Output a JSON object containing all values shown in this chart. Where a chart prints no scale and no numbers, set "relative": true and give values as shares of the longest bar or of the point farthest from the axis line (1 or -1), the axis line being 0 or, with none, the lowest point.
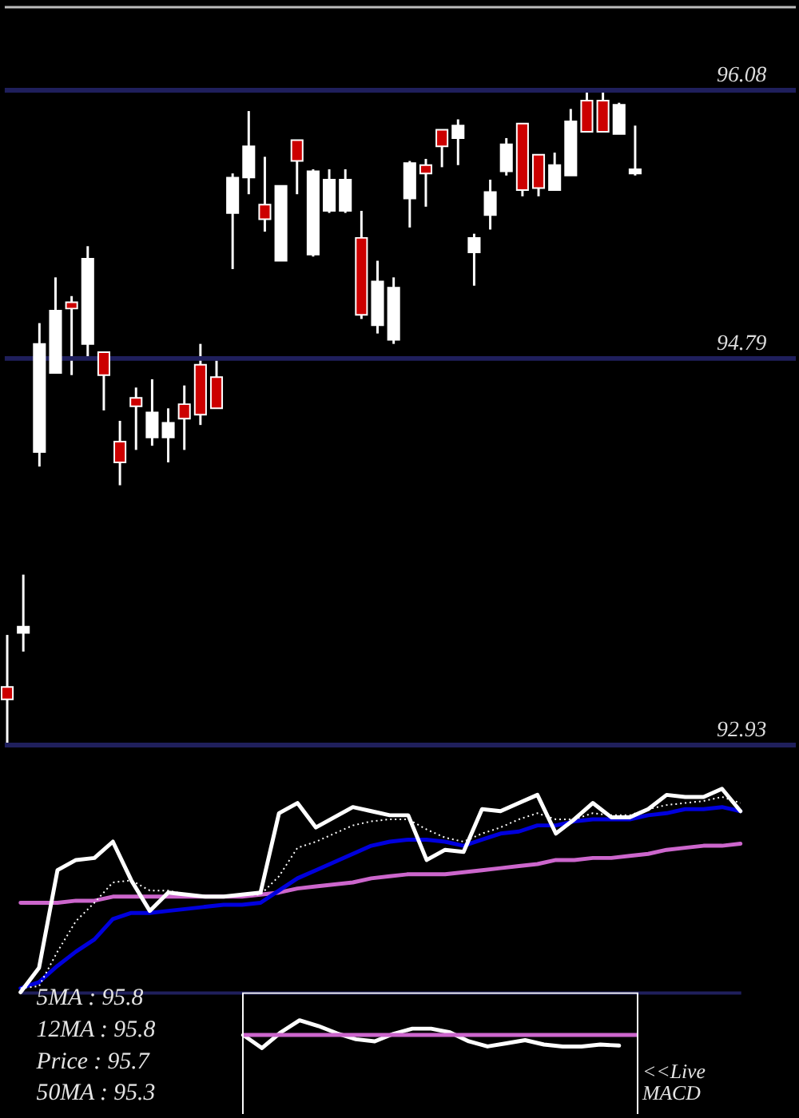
{
  "chart_data": [
    {
      "type": "candlestick",
      "categories": [
        null,
        null,
        null,
        null,
        null,
        null,
        null,
        null,
        null,
        null,
        null,
        null,
        null,
        null,
        null,
        null,
        null,
        null,
        null,
        null,
        null,
        null,
        null,
        null,
        null,
        null,
        null,
        null,
        null,
        null,
        null,
        null,
        null,
        null,
        null,
        null,
        null,
        null,
        null,
        null
      ],
      "ohlc": [
        [
          93.21,
          93.46,
          92.93,
          93.15
        ],
        [
          93.47,
          93.75,
          93.38,
          93.5
        ],
        [
          94.34,
          94.96,
          94.27,
          94.86
        ],
        [
          94.72,
          95.18,
          94.72,
          95.02
        ],
        [
          95.06,
          95.09,
          94.71,
          95.03
        ],
        [
          94.86,
          95.33,
          94.8,
          95.27
        ],
        [
          94.82,
          94.82,
          94.54,
          94.71
        ],
        [
          94.39,
          94.49,
          94.18,
          94.29
        ],
        [
          94.6,
          94.65,
          94.35,
          94.56
        ],
        [
          94.41,
          94.69,
          94.37,
          94.53
        ],
        [
          94.41,
          94.55,
          94.29,
          94.48
        ],
        [
          94.57,
          94.66,
          94.35,
          94.5
        ],
        [
          94.76,
          94.86,
          94.47,
          94.52
        ],
        [
          94.7,
          94.78,
          94.55,
          94.55
        ],
        [
          95.49,
          95.68,
          95.22,
          95.66
        ],
        [
          95.66,
          95.98,
          95.58,
          95.81
        ],
        [
          95.53,
          95.76,
          95.4,
          95.46
        ],
        [
          95.26,
          95.62,
          95.26,
          95.62
        ],
        [
          95.84,
          95.84,
          95.58,
          95.74
        ],
        [
          95.29,
          95.7,
          95.28,
          95.69
        ],
        [
          95.5,
          95.7,
          95.49,
          95.65
        ],
        [
          95.5,
          95.7,
          95.49,
          95.65
        ],
        [
          95.37,
          95.5,
          94.98,
          95.0
        ],
        [
          94.95,
          95.26,
          94.91,
          95.16
        ],
        [
          94.88,
          95.18,
          94.86,
          95.13
        ],
        [
          95.56,
          95.74,
          95.42,
          95.73
        ],
        [
          95.72,
          95.75,
          95.52,
          95.68
        ],
        [
          95.89,
          95.89,
          95.71,
          95.81
        ],
        [
          95.85,
          95.94,
          95.72,
          95.91
        ],
        [
          95.3,
          95.39,
          95.14,
          95.37
        ],
        [
          95.48,
          95.65,
          95.41,
          95.59
        ],
        [
          95.69,
          95.85,
          95.67,
          95.82
        ],
        [
          95.92,
          95.92,
          95.57,
          95.6
        ],
        [
          95.77,
          95.77,
          95.57,
          95.61
        ],
        [
          95.6,
          95.78,
          95.6,
          95.72
        ],
        [
          95.67,
          95.99,
          95.67,
          95.93
        ],
        [
          96.03,
          96.08,
          95.88,
          95.88
        ],
        [
          96.03,
          96.08,
          95.88,
          95.88
        ],
        [
          95.87,
          96.02,
          95.87,
          96.01
        ],
        [
          95.68,
          95.91,
          95.67,
          95.7
        ]
      ],
      "colors": [
        "#cc0000",
        "#ffffff",
        "#ffffff",
        "#ffffff",
        "#cc0000",
        "#ffffff",
        "#cc0000",
        "#cc0000",
        "#cc0000",
        "#ffffff",
        "#ffffff",
        "#cc0000",
        "#cc0000",
        "#cc0000",
        "#ffffff",
        "#ffffff",
        "#cc0000",
        "#ffffff",
        "#cc0000",
        "#ffffff",
        "#ffffff",
        "#ffffff",
        "#cc0000",
        "#ffffff",
        "#ffffff",
        "#ffffff",
        "#cc0000",
        "#cc0000",
        "#ffffff",
        "#ffffff",
        "#ffffff",
        "#ffffff",
        "#cc0000",
        "#cc0000",
        "#ffffff",
        "#ffffff",
        "#cc0000",
        "#cc0000",
        "#ffffff",
        "#ffffff"
      ],
      "ylim": [
        92.92,
        96.48
      ],
      "yticks": [
        92.93,
        94.79,
        96.08
      ],
      "grid": "y",
      "tick_labels": "y"
    },
    {
      "type": "line",
      "relative": true,
      "tick_labels": false,
      "categories": [
        null,
        null,
        null,
        null,
        null,
        null,
        null,
        null,
        null,
        null,
        null,
        null,
        null,
        null,
        null,
        null,
        null,
        null,
        null,
        null,
        null,
        null,
        null,
        null,
        null,
        null,
        null,
        null,
        null,
        null,
        null,
        null,
        null,
        null,
        null,
        null,
        null,
        null,
        null,
        null
      ],
      "series": [
        {
          "color": "#cc66cc",
          "values": [
            0.44,
            0.44,
            0.44,
            0.45,
            0.45,
            0.47,
            0.47,
            0.47,
            0.47,
            0.47,
            0.47,
            0.47,
            0.47,
            0.48,
            0.49,
            0.51,
            0.52,
            0.53,
            0.54,
            0.56,
            0.57,
            0.58,
            0.58,
            0.58,
            0.59,
            0.6,
            0.61,
            0.62,
            0.63,
            0.65,
            0.65,
            0.66,
            0.66,
            0.67,
            0.68,
            0.7,
            0.71,
            0.72,
            0.72,
            0.73
          ]
        },
        {
          "color": "#0000dd",
          "values": [
            0.02,
            0.05,
            0.13,
            0.2,
            0.26,
            0.36,
            0.39,
            0.39,
            0.4,
            0.41,
            0.42,
            0.43,
            0.43,
            0.44,
            0.5,
            0.56,
            0.6,
            0.64,
            0.68,
            0.72,
            0.74,
            0.75,
            0.75,
            0.74,
            0.72,
            0.75,
            0.78,
            0.79,
            0.82,
            0.82,
            0.84,
            0.85,
            0.85,
            0.85,
            0.87,
            0.88,
            0.9,
            0.9,
            0.91,
            0.89
          ]
        },
        {
          "color": "#ffffff",
          "line_style": "dotted",
          "values": [
            0.02,
            0.03,
            0.2,
            0.35,
            0.44,
            0.54,
            0.55,
            0.5,
            0.5,
            0.48,
            0.47,
            0.47,
            0.48,
            0.48,
            0.57,
            0.71,
            0.74,
            0.78,
            0.82,
            0.84,
            0.85,
            0.85,
            0.8,
            0.76,
            0.74,
            0.78,
            0.81,
            0.85,
            0.88,
            0.85,
            0.85,
            0.88,
            0.87,
            0.87,
            0.9,
            0.92,
            0.93,
            0.94,
            0.96,
            0.93
          ]
        },
        {
          "color": "#ffffff",
          "values": [
            0,
            0.12,
            0.6,
            0.65,
            0.66,
            0.74,
            0.55,
            0.4,
            0.49,
            0.48,
            0.47,
            0.47,
            0.48,
            0.49,
            0.88,
            0.93,
            0.81,
            0.86,
            0.91,
            0.89,
            0.87,
            0.87,
            0.65,
            0.7,
            0.69,
            0.9,
            0.89,
            0.93,
            0.97,
            0.78,
            0.85,
            0.93,
            0.86,
            0.86,
            0.9,
            0.97,
            0.96,
            0.96,
            1,
            0.89
          ]
        }
      ],
      "annotations": [
        "5MA : 95.8",
        "12MA : 95.8",
        "Price : 95.7",
        "50MA : 95.3"
      ]
    },
    {
      "type": "line",
      "relative": true,
      "tick_labels": false,
      "categories": [
        null,
        null,
        null,
        null,
        null,
        null,
        null,
        null,
        null,
        null,
        null,
        null,
        null,
        null,
        null,
        null,
        null,
        null,
        null,
        null,
        null
      ],
      "series": [
        {
          "color": "#ffffff",
          "values": [
            0,
            -0.89,
            0.18,
            1,
            0.61,
            0.11,
            -0.29,
            -0.43,
            0.08,
            0.43,
            0.43,
            0.18,
            -0.43,
            -0.78,
            -0.57,
            -0.35,
            -0.65,
            -0.78,
            -0.78,
            -0.65,
            -0.72
          ]
        }
      ],
      "ref_lines": [
        {
          "axis": "y",
          "value": 0,
          "color": "#cc66cc"
        }
      ],
      "annotations": [
        "<<Live MACD"
      ]
    }
  ]
}
